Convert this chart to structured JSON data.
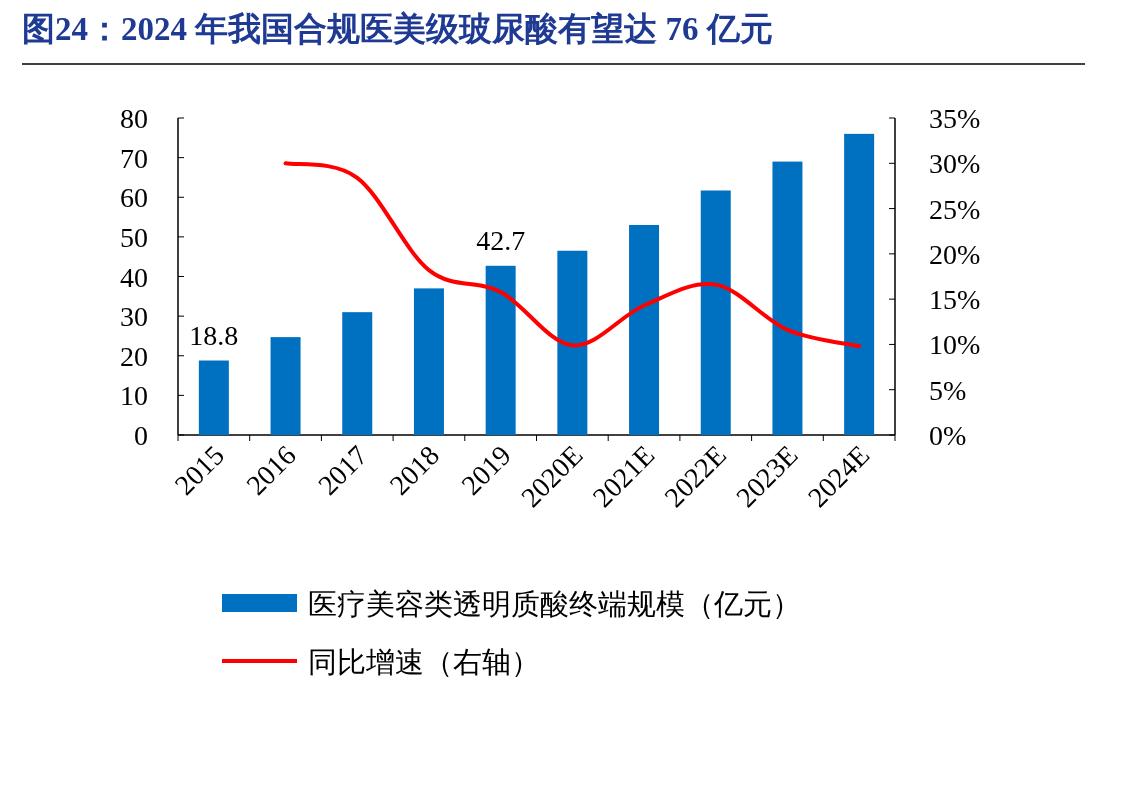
{
  "chart_data": {
    "type": "bar",
    "title": "图24：2024 年我国合规医美级玻尿酸有望达 76 亿元",
    "categories": [
      "2015",
      "2016",
      "2017",
      "2018",
      "2019",
      "2020E",
      "2021E",
      "2022E",
      "2023E",
      "2024E"
    ],
    "series": [
      {
        "name": "医疗美容类透明质酸终端规模（亿元）",
        "color": "#0070c0",
        "values": [
          18.8,
          24.7,
          31,
          37,
          42.7,
          46.5,
          53,
          61.7,
          69,
          76
        ],
        "value_labels": [
          "18.8",
          null,
          null,
          null,
          "42.7",
          null,
          null,
          null,
          null,
          null
        ]
      },
      {
        "name": "同比增速（右轴）",
        "type": "line",
        "axis": "y2",
        "color": "#ff0000",
        "values": [
          null,
          30,
          28.4,
          18.2,
          15.8,
          9.9,
          14.3,
          16.6,
          11.6,
          9.8
        ]
      }
    ],
    "ylim": [
      0,
      80
    ],
    "yticks": [
      0,
      10,
      20,
      30,
      40,
      50,
      60,
      70,
      80
    ],
    "y2lim": [
      0,
      35
    ],
    "y2ticks": [
      {
        "value": 0,
        "label": "0%"
      },
      {
        "value": 5,
        "label": "5%"
      },
      {
        "value": 10,
        "label": "10%"
      },
      {
        "value": 15,
        "label": "15%"
      },
      {
        "value": 20,
        "label": "20%"
      },
      {
        "value": 25,
        "label": "25%"
      },
      {
        "value": 30,
        "label": "30%"
      },
      {
        "value": 35,
        "label": "35%"
      }
    ],
    "legend": "bottom"
  }
}
